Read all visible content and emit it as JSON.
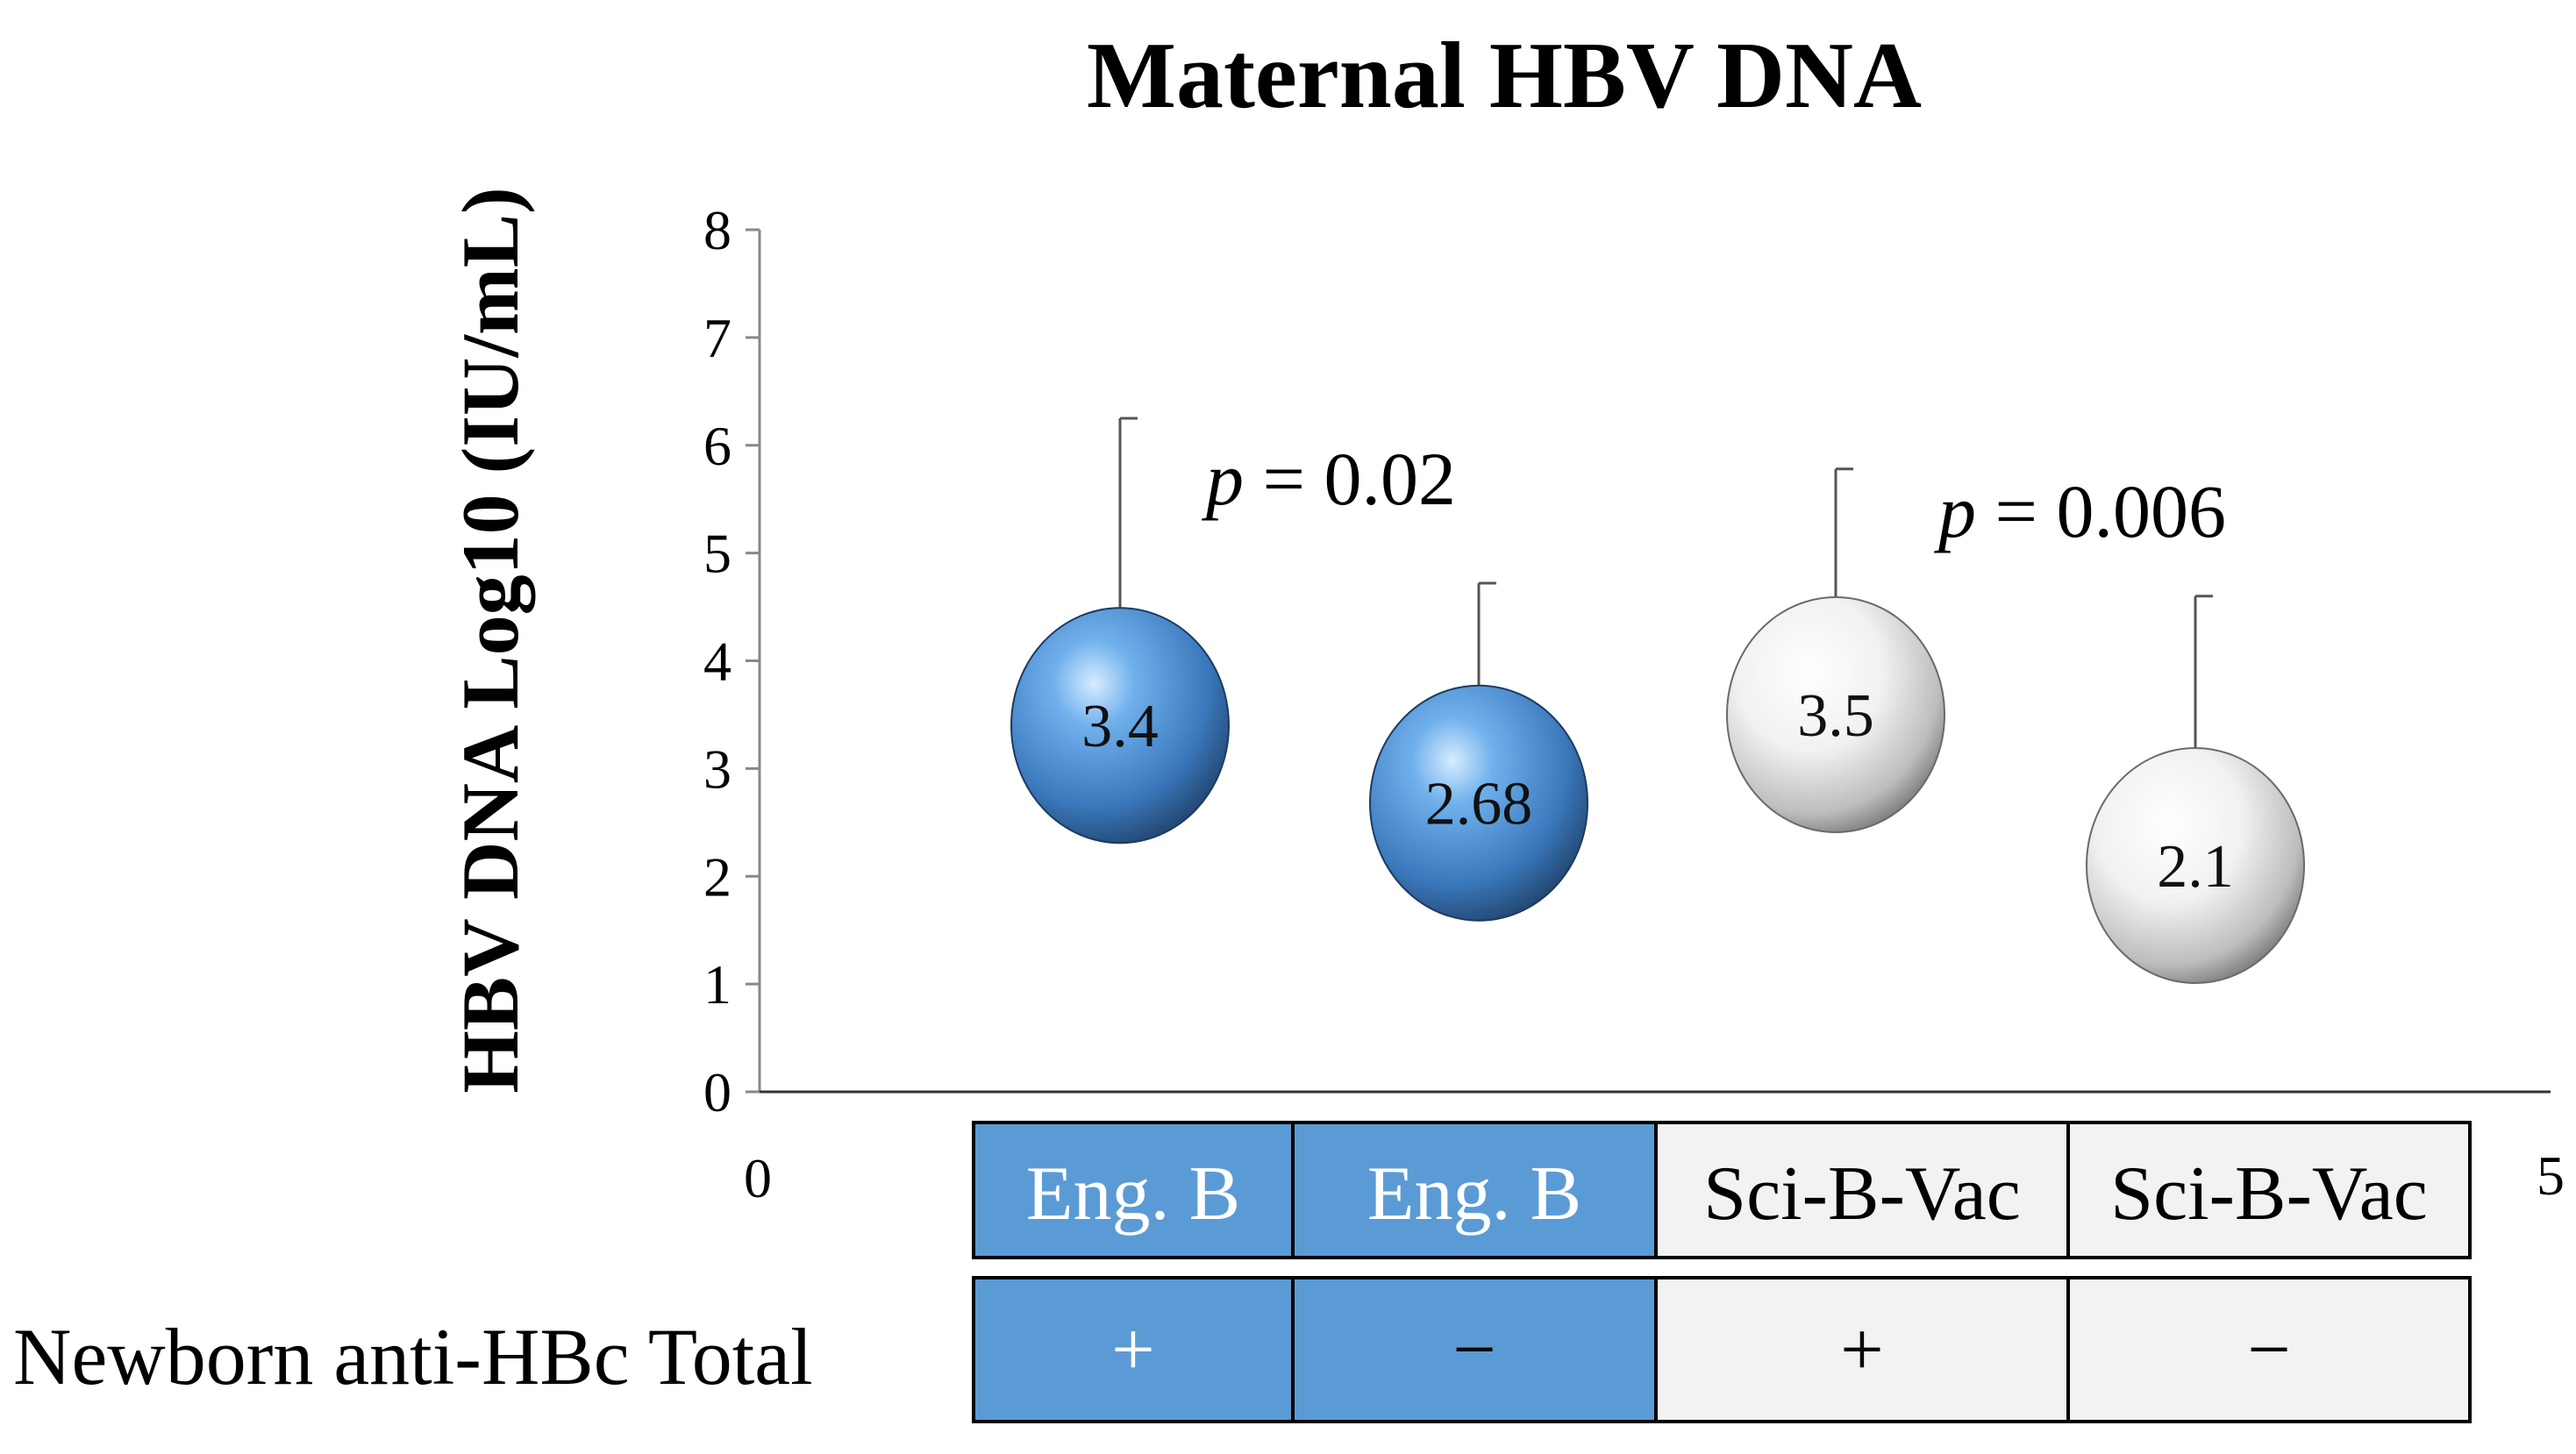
{
  "chart_data": {
    "type": "scatter",
    "title": "Maternal HBV DNA",
    "ylabel": "HBV DNA Log10 (IU/mL)",
    "ylim": [
      0,
      8
    ],
    "yticks": [
      "0",
      "1",
      "2",
      "3",
      "4",
      "5",
      "6",
      "7",
      "8"
    ],
    "xlim": [
      0,
      5
    ],
    "xtick_labels": [
      "0",
      "5"
    ],
    "grid": false,
    "x": [
      1,
      2,
      3,
      4
    ],
    "values": [
      3.4,
      2.68,
      3.5,
      2.1
    ],
    "data_labels": [
      "3.4",
      "2.68",
      "3.5",
      "2.1"
    ],
    "error_upper": [
      6.25,
      4.72,
      5.78,
      4.6
    ],
    "colors": [
      "#4f8fd0",
      "#4f8fd0",
      "#f0f0f0",
      "#f0f0f0"
    ],
    "annotations": [
      {
        "p": "p",
        "text": " = 0.02"
      },
      {
        "p": "p",
        "text": " = 0.006"
      }
    ]
  },
  "table": {
    "vaccine_row": [
      "Eng. B",
      "Eng. B",
      "Sci-B-Vac",
      "Sci-B-Vac"
    ],
    "row_header": "Newborn anti-HBc Total",
    "antibody_row": [
      "+",
      "−",
      "+",
      "−"
    ],
    "blue": "#5b9bd5",
    "grey": "#f2f2f2"
  }
}
